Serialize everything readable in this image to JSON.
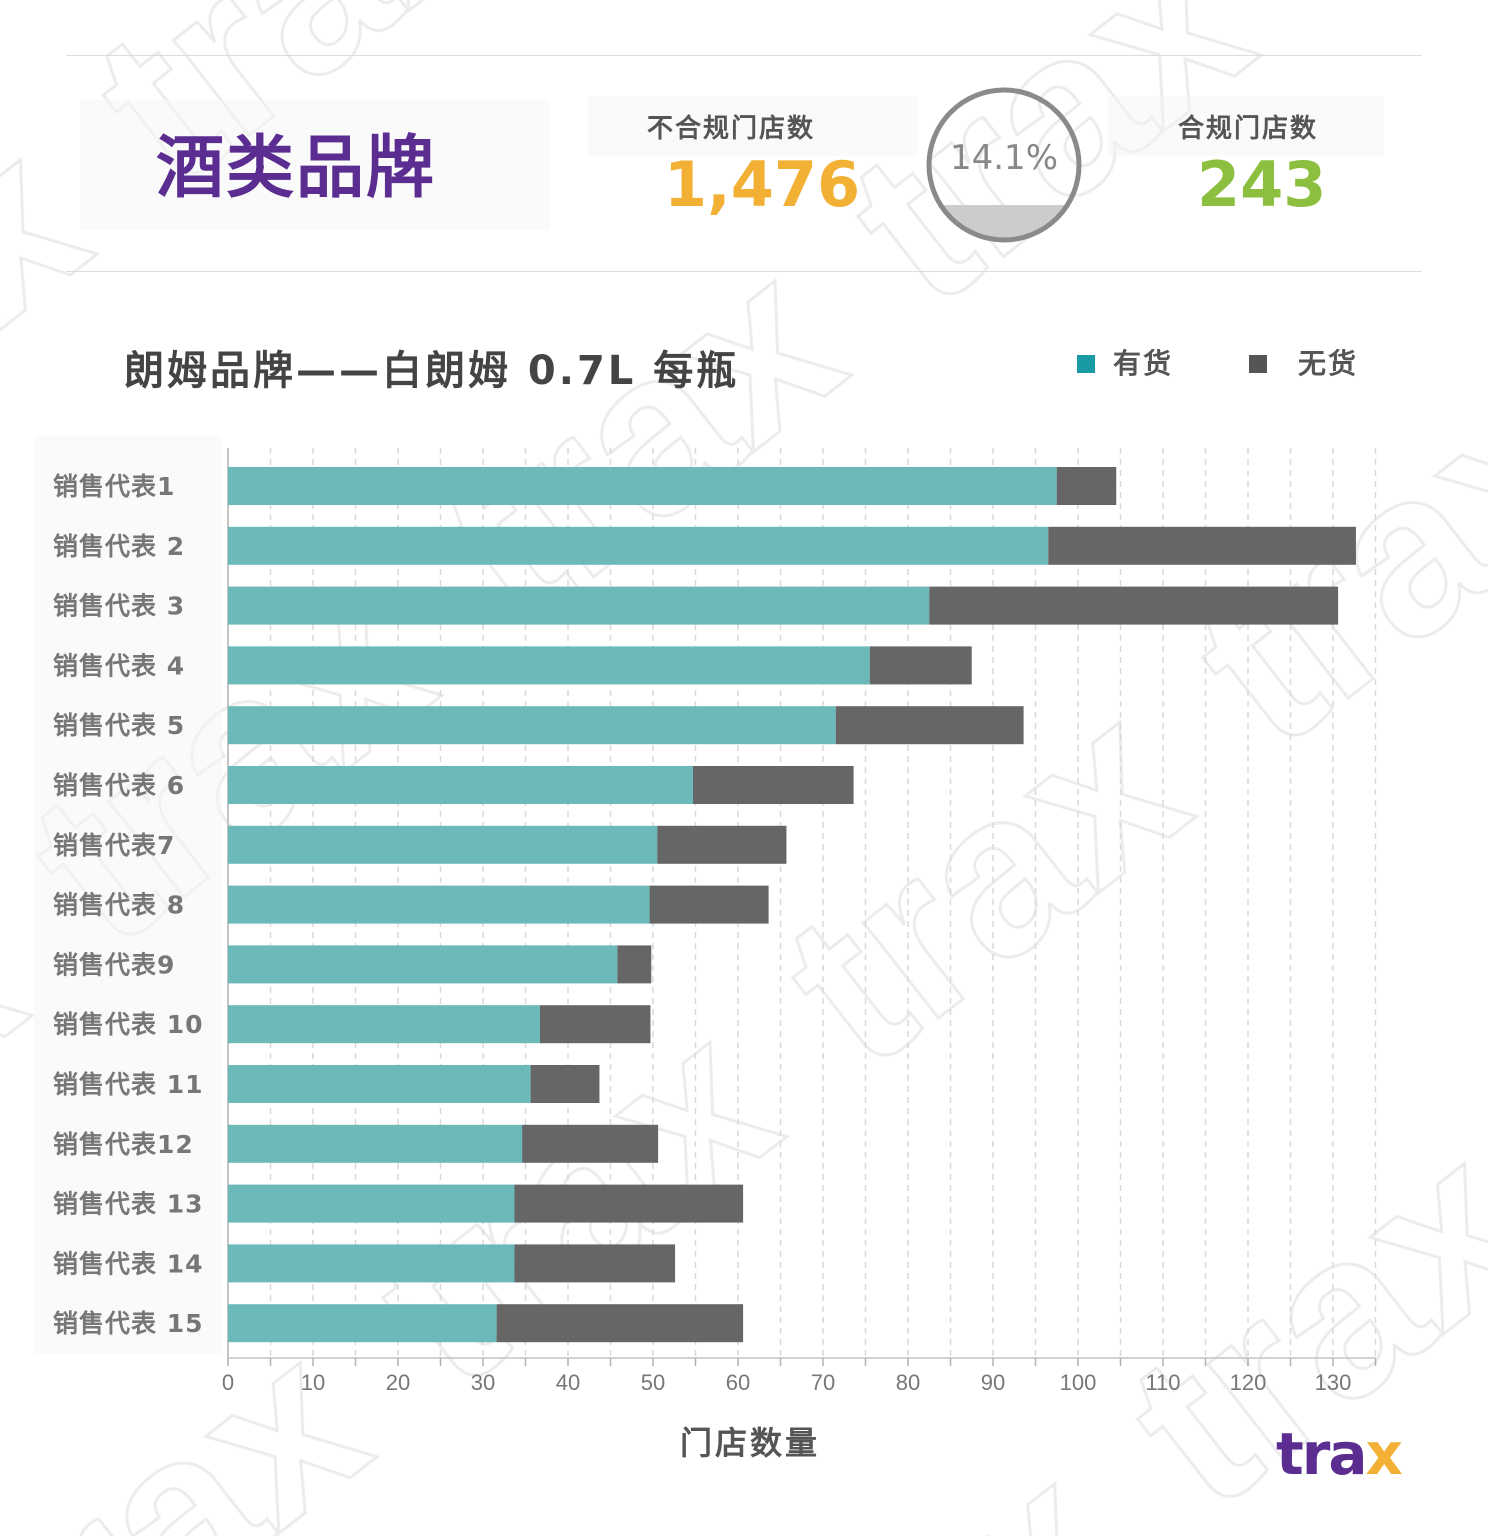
{
  "header": {
    "brand_title": "酒类品牌",
    "noncompliant_label": "不合规门店数",
    "noncompliant_value": "1,476",
    "compliance_percent_text": "14.1%",
    "compliance_fraction": 0.141,
    "compliant_label": "合规门店数",
    "compliant_value": "243"
  },
  "legend": {
    "in_stock": "有货",
    "out_of_stock": "无货"
  },
  "colors": {
    "brand_purple": "#5b2d90",
    "noncompliant": "#f2b134",
    "compliant": "#8cbf3f",
    "in_stock": "#6cb9ba",
    "in_stock_legend": "#1a9aa3",
    "out_of_stock": "#666666",
    "gauge_fill": "#cccccc",
    "gauge_ring": "#8a8a8a"
  },
  "logo": {
    "text_t": "tr",
    "text_a": "a",
    "text_x": "x"
  },
  "chart_data": {
    "type": "bar",
    "orientation": "horizontal",
    "stacked": true,
    "title": "朗姆品牌——白朗姆 0.7L 每瓶",
    "xlabel": "门店数量",
    "ylabel": "",
    "categories": [
      "销售代表1",
      "销售代表 2",
      "销售代表 3",
      "销售代表 4",
      "销售代表 5",
      "销售代表 6",
      "销售代表7",
      "销售代表 8",
      "销售代表9",
      "销售代表 10",
      "销售代表 11",
      "销售代表12",
      "销售代表 13",
      "销售代表 14",
      "销售代表 15"
    ],
    "series": [
      {
        "name": "有货",
        "values": [
          97.5,
          96.5,
          82.5,
          75.5,
          71.5,
          54.7,
          50.5,
          49.6,
          45.8,
          36.7,
          35.6,
          34.6,
          33.7,
          33.7,
          31.6
        ]
      },
      {
        "name": "无货",
        "values": [
          7.0,
          36.2,
          48.1,
          12.0,
          22.1,
          18.9,
          15.2,
          14.0,
          4.0,
          13.0,
          8.1,
          16.0,
          26.9,
          18.9,
          29.0
        ]
      }
    ],
    "xlim": [
      0,
      135
    ],
    "xticks": [
      "0",
      "10",
      "20",
      "30",
      "40",
      "50",
      "60",
      "70",
      "80",
      "90",
      "100",
      "110",
      "120",
      "130"
    ],
    "grid": "vertical dashed",
    "legend_position": "top-right"
  }
}
